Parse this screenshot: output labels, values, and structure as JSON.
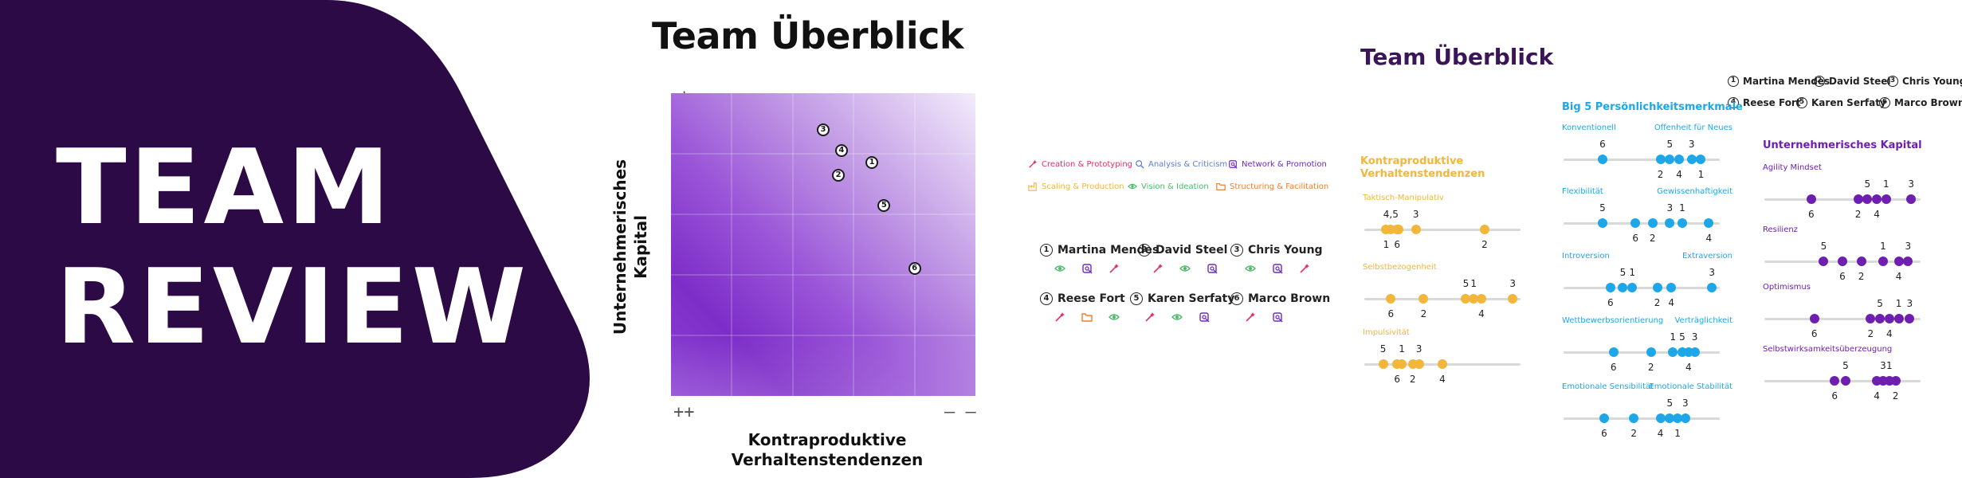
{
  "hero": {
    "line1": "TEAM",
    "line2": "REVIEW",
    "bg_color": "#2c0a45"
  },
  "matrix": {
    "title": "Team Überblick",
    "y_axis_title": "Unternehmerisches Kapital",
    "x_axis_title": "Kontraproduktive Verhaltenstendenzen",
    "y_top_symbol_1": "+",
    "y_top_symbol_2": "+",
    "y_bottom_symbol": "–",
    "x_left_symbol": "++",
    "x_right_symbol": "– –",
    "chart_data": {
      "type": "scatter",
      "xlabel": "Kontraproduktive Verhaltenstendenzen",
      "ylabel": "Unternehmerisches Kapital",
      "points": [
        {
          "label": "1",
          "x": 0.66,
          "y": 0.77
        },
        {
          "label": "2",
          "x": 0.55,
          "y": 0.73
        },
        {
          "label": "3",
          "x": 0.5,
          "y": 0.88
        },
        {
          "label": "4",
          "x": 0.56,
          "y": 0.81
        },
        {
          "label": "5",
          "x": 0.7,
          "y": 0.63
        },
        {
          "label": "6",
          "x": 0.8,
          "y": 0.42
        }
      ]
    }
  },
  "categories": [
    {
      "label": "Creation & Prototyping",
      "color": "#e0306a",
      "icon": "wand-icon"
    },
    {
      "label": "Analysis & Criticism",
      "color": "#5a7fd6",
      "icon": "magnifier-icon"
    },
    {
      "label": "Network & Promotion",
      "color": "#6b2bbd",
      "icon": "network-icon"
    },
    {
      "label": "Scaling & Production",
      "color": "#f2b63b",
      "icon": "factory-icon"
    },
    {
      "label": "Vision & Ideation",
      "color": "#4cba6b",
      "icon": "eye-icon"
    },
    {
      "label": "Structuring & Facilitation",
      "color": "#f07e2e",
      "icon": "folder-icon"
    }
  ],
  "people": [
    {
      "num": "1",
      "name": "Martina Mendes",
      "icons": [
        "eye-icon",
        "network-icon",
        "wand-icon"
      ]
    },
    {
      "num": "2",
      "name": "David Steel",
      "icons": [
        "wand-icon",
        "eye-icon",
        "network-icon"
      ]
    },
    {
      "num": "3",
      "name": "Chris Young",
      "icons": [
        "eye-icon",
        "network-icon",
        "wand-icon"
      ]
    },
    {
      "num": "4",
      "name": "Reese Fort",
      "icons": [
        "wand-icon",
        "folder-icon",
        "eye-icon"
      ]
    },
    {
      "num": "5",
      "name": "Karen Serfaty",
      "icons": [
        "wand-icon",
        "eye-icon",
        "network-icon"
      ]
    },
    {
      "num": "6",
      "name": "Marco Brown",
      "icons": [
        "wand-icon",
        "network-icon"
      ]
    }
  ],
  "overview": {
    "title": "Team Überblick",
    "legend": [
      {
        "num": "1",
        "name": "Martina Mendes"
      },
      {
        "num": "2",
        "name": "David Steel"
      },
      {
        "num": "3",
        "name": "Chris Young"
      },
      {
        "num": "4",
        "name": "Reese Fort"
      },
      {
        "num": "5",
        "name": "Karen Serfaty"
      },
      {
        "num": "6",
        "name": "Marco Brown"
      }
    ]
  },
  "kontra": {
    "title_1": "Kontraproduktive",
    "title_2": "Verhaltenstendenzen",
    "color": "#f2b63b",
    "rows": [
      {
        "label": "Taktisch-Manipulativ",
        "points": [
          {
            "v": 0.17,
            "top": "4,5"
          },
          {
            "v": 0.22,
            "top": ""
          },
          {
            "v": 0.33,
            "top": "3"
          },
          {
            "v": 0.14,
            "bottom": "1"
          },
          {
            "v": 0.21,
            "bottom": "6"
          },
          {
            "v": 0.77,
            "bottom": "2"
          }
        ]
      },
      {
        "label": "Selbstbezogenheit",
        "points": [
          {
            "v": 0.17,
            "bottom": "6"
          },
          {
            "v": 0.38,
            "bottom": "2"
          },
          {
            "v": 0.65,
            "top": "5"
          },
          {
            "v": 0.7,
            "top": "1"
          },
          {
            "v": 0.75,
            "bottom": "4"
          },
          {
            "v": 0.95,
            "top": "3"
          }
        ]
      },
      {
        "label": "Impulsivität",
        "points": [
          {
            "v": 0.12,
            "top": "5"
          },
          {
            "v": 0.24,
            "top": "1"
          },
          {
            "v": 0.35,
            "top": "3"
          },
          {
            "v": 0.21,
            "bottom": "6"
          },
          {
            "v": 0.31,
            "bottom": "2"
          },
          {
            "v": 0.5,
            "bottom": "4"
          }
        ]
      }
    ]
  },
  "big5": {
    "title": "Big 5 Persönlichkeitsmerkmale",
    "color": "#1ea7e8",
    "rows": [
      {
        "left": "Konventionell",
        "right": "Offenheit für Neues",
        "points": [
          {
            "v": 0.25,
            "top": "6"
          },
          {
            "v": 0.62,
            "bottom": "2"
          },
          {
            "v": 0.68,
            "top": "5"
          },
          {
            "v": 0.74,
            "bottom": "4"
          },
          {
            "v": 0.82,
            "top": "3"
          },
          {
            "v": 0.88,
            "bottom": "1"
          }
        ]
      },
      {
        "left": "Flexibilität",
        "right": "Gewissenhaftigkeit",
        "points": [
          {
            "v": 0.25,
            "top": "5"
          },
          {
            "v": 0.46,
            "bottom": "6"
          },
          {
            "v": 0.57,
            "bottom": "2"
          },
          {
            "v": 0.68,
            "top": "3"
          },
          {
            "v": 0.76,
            "top": "1"
          },
          {
            "v": 0.93,
            "bottom": "4"
          }
        ]
      },
      {
        "left": "Introversion",
        "right": "Extraversion",
        "points": [
          {
            "v": 0.3,
            "bottom": "6"
          },
          {
            "v": 0.38,
            "top": "5"
          },
          {
            "v": 0.44,
            "top": "1"
          },
          {
            "v": 0.6,
            "bottom": "2"
          },
          {
            "v": 0.69,
            "bottom": "4"
          },
          {
            "v": 0.95,
            "top": "3"
          }
        ]
      },
      {
        "left": "Wettbewerbsorientierung",
        "right": "Verträglichkeit",
        "points": [
          {
            "v": 0.32,
            "bottom": "6"
          },
          {
            "v": 0.56,
            "bottom": "2"
          },
          {
            "v": 0.7,
            "top": "1"
          },
          {
            "v": 0.76,
            "top": "5"
          },
          {
            "v": 0.8,
            "bottom": "4"
          },
          {
            "v": 0.84,
            "top": "3"
          }
        ]
      },
      {
        "left": "Emotionale Sensibilität",
        "right": "Emotionale Stabilität",
        "points": [
          {
            "v": 0.26,
            "bottom": "6"
          },
          {
            "v": 0.45,
            "bottom": "2"
          },
          {
            "v": 0.62,
            "bottom": "4"
          },
          {
            "v": 0.68,
            "top": "5"
          },
          {
            "v": 0.73,
            "bottom": "1"
          },
          {
            "v": 0.78,
            "top": "3"
          }
        ]
      }
    ]
  },
  "kapital": {
    "title": "Unternehmerisches Kapital",
    "color": "#6e1fb0",
    "rows": [
      {
        "label": "Agility Mindset",
        "points": [
          {
            "v": 0.3,
            "bottom": "6"
          },
          {
            "v": 0.6,
            "bottom": "2"
          },
          {
            "v": 0.66,
            "top": "5"
          },
          {
            "v": 0.72,
            "bottom": "4"
          },
          {
            "v": 0.78,
            "top": "1"
          },
          {
            "v": 0.94,
            "top": "3"
          }
        ]
      },
      {
        "label": "Resilienz",
        "points": [
          {
            "v": 0.38,
            "top": "5"
          },
          {
            "v": 0.5,
            "bottom": "6"
          },
          {
            "v": 0.62,
            "bottom": "2"
          },
          {
            "v": 0.76,
            "top": "1"
          },
          {
            "v": 0.86,
            "bottom": "4"
          },
          {
            "v": 0.92,
            "top": "3"
          }
        ]
      },
      {
        "label": "Optimismus",
        "points": [
          {
            "v": 0.32,
            "bottom": "6"
          },
          {
            "v": 0.68,
            "bottom": "2"
          },
          {
            "v": 0.74,
            "top": "5"
          },
          {
            "v": 0.8,
            "bottom": "4"
          },
          {
            "v": 0.86,
            "top": "1"
          },
          {
            "v": 0.93,
            "top": "3"
          }
        ]
      },
      {
        "label": "Selbstwirksamkeitsüberzeugung",
        "points": [
          {
            "v": 0.45,
            "bottom": "6"
          },
          {
            "v": 0.52,
            "top": "5"
          },
          {
            "v": 0.72,
            "bottom": "4"
          },
          {
            "v": 0.76,
            "top": "3"
          },
          {
            "v": 0.8,
            "top": "1"
          },
          {
            "v": 0.84,
            "bottom": "2"
          }
        ]
      }
    ]
  }
}
